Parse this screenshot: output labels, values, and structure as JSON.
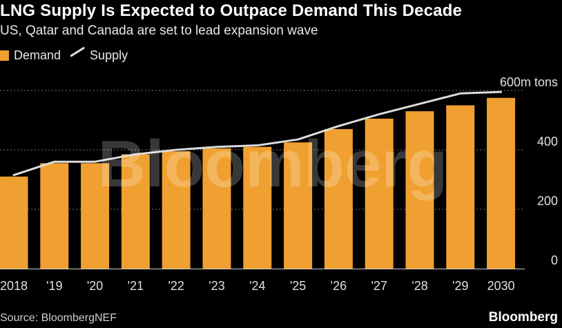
{
  "header": {
    "title": "LNG Supply Is Expected to Outpace Demand This Decade",
    "subtitle": "US, Qatar and Canada are set to lead expansion wave"
  },
  "legend": {
    "demand_label": "Demand",
    "supply_label": "Supply"
  },
  "footer": {
    "source": "Source: BloombergNEF",
    "brand": "Bloomberg"
  },
  "watermark": "Bloomberg",
  "colors": {
    "demand": "#f0a030",
    "supply": "#dcdcdc",
    "grid": "#7a7a7a",
    "background": "#000000"
  },
  "chart_data": {
    "type": "bar",
    "title": "LNG Supply Is Expected to Outpace Demand This Decade",
    "subtitle": "US, Qatar and Canada are set to lead expansion wave",
    "categories": [
      "2018",
      "'19",
      "'20",
      "'21",
      "'22",
      "'23",
      "'24",
      "'25",
      "'26",
      "'27",
      "'28",
      "'29",
      "2030"
    ],
    "series": [
      {
        "name": "Demand",
        "type": "bar",
        "values": [
          310,
          355,
          355,
          385,
          395,
          405,
          410,
          425,
          470,
          505,
          530,
          550,
          575
        ]
      },
      {
        "name": "Supply",
        "type": "line",
        "values": [
          315,
          360,
          360,
          385,
          400,
          410,
          415,
          435,
          480,
          520,
          555,
          590,
          595
        ]
      }
    ],
    "yticks": [
      0,
      200,
      400,
      600
    ],
    "ytick_labels": [
      "0",
      "200",
      "400",
      "600m tons"
    ],
    "ylim": [
      0,
      600
    ],
    "y_axis_position": "right",
    "grid": true,
    "legend_position": "top-left",
    "xlabel": "",
    "ylabel": ""
  }
}
